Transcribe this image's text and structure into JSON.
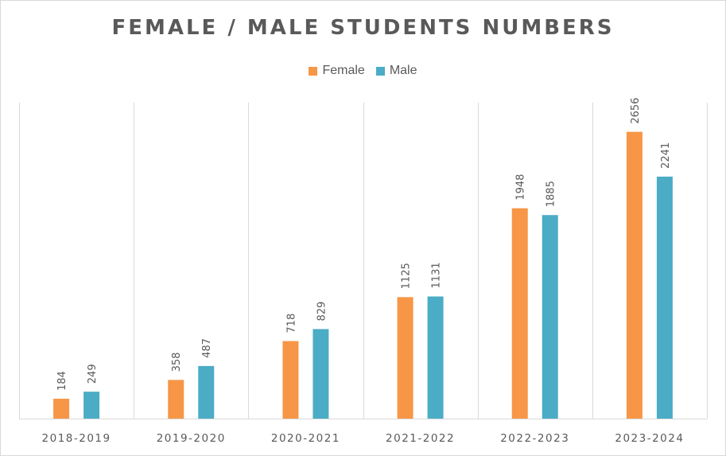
{
  "chart_data": {
    "type": "bar",
    "title": "FEMALE / MALE STUDENTS NUMBERS",
    "categories": [
      "2018-2019",
      "2019-2020",
      "2020-2021",
      "2021-2022",
      "2022-2023",
      "2023-2024"
    ],
    "series": [
      {
        "name": "Female",
        "color": "#F79646",
        "values": [
          184,
          358,
          718,
          1125,
          1948,
          2656
        ]
      },
      {
        "name": "Male",
        "color": "#4BACC6",
        "values": [
          249,
          487,
          829,
          1131,
          1885,
          2241
        ]
      }
    ],
    "xlabel": "",
    "ylabel": "",
    "ylim": [
      0,
      3000
    ],
    "grid": "vertical category separators",
    "legend": "top-center",
    "data_labels": "rotated vertical above bars"
  }
}
